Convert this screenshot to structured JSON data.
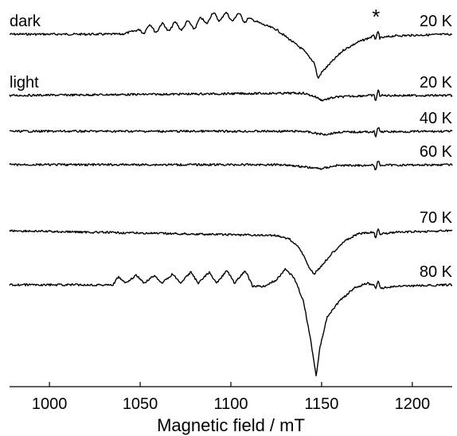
{
  "chart_data": {
    "type": "line",
    "title": "",
    "xlabel": "Magnetic field / mT",
    "ylabel": "",
    "xlim": [
      978,
      1222
    ],
    "xticks": [
      1000,
      1050,
      1100,
      1150,
      1200
    ],
    "xtick_labels": [
      "1000",
      "1050",
      "1100",
      "1150",
      "1200"
    ],
    "y_axis_shown": false,
    "grid": false,
    "annotation": "*",
    "annotation_field": 1180,
    "series": [
      {
        "left_label": "dark",
        "right_label": "20 K",
        "baseline": 43,
        "points": [
          [
            978,
            0
          ],
          [
            1040,
            0
          ],
          [
            1050,
            -6
          ],
          [
            1060,
            -8
          ],
          [
            1070,
            -10
          ],
          [
            1080,
            -12
          ],
          [
            1090,
            -22
          ],
          [
            1100,
            -22
          ],
          [
            1110,
            -20
          ],
          [
            1118,
            -12
          ],
          [
            1125,
            -6
          ],
          [
            1132,
            6
          ],
          [
            1140,
            20
          ],
          [
            1146,
            36
          ],
          [
            1148,
            56
          ],
          [
            1150,
            48
          ],
          [
            1155,
            36
          ],
          [
            1162,
            20
          ],
          [
            1170,
            10
          ],
          [
            1178,
            3
          ],
          [
            1180,
            0
          ],
          [
            1182,
            5
          ],
          [
            1190,
            2
          ],
          [
            1222,
            0
          ]
        ],
        "lines": [
          [
            1050,
            1110,
            10,
            7
          ],
          [
            1179,
            1182,
            11,
            3
          ]
        ]
      },
      {
        "left_label": "light",
        "right_label": "20 K",
        "baseline": 120,
        "points": [
          [
            978,
            0
          ],
          [
            1140,
            -3
          ],
          [
            1147,
            2
          ],
          [
            1150,
            6
          ],
          [
            1158,
            2
          ],
          [
            1175,
            0
          ],
          [
            1180,
            0
          ],
          [
            1222,
            0
          ]
        ],
        "lines": [
          [
            1179,
            1182,
            12,
            3
          ]
        ]
      },
      {
        "right_label": "40 K",
        "baseline": 165,
        "points": [
          [
            978,
            0
          ],
          [
            1140,
            0
          ],
          [
            1148,
            3
          ],
          [
            1152,
            4
          ],
          [
            1160,
            1
          ],
          [
            1222,
            0
          ]
        ],
        "lines": [
          [
            1179,
            1182,
            12,
            3
          ]
        ]
      },
      {
        "right_label": "60 K",
        "baseline": 207,
        "points": [
          [
            978,
            0
          ],
          [
            1130,
            0
          ],
          [
            1145,
            4
          ],
          [
            1150,
            5
          ],
          [
            1158,
            1
          ],
          [
            1222,
            0
          ]
        ],
        "lines": [
          [
            1179,
            1182,
            12,
            3
          ]
        ]
      },
      {
        "right_label": "70 K",
        "baseline": 290,
        "points": [
          [
            978,
            0
          ],
          [
            1100,
            5
          ],
          [
            1125,
            6
          ],
          [
            1132,
            10
          ],
          [
            1138,
            22
          ],
          [
            1144,
            50
          ],
          [
            1146,
            54
          ],
          [
            1150,
            44
          ],
          [
            1155,
            30
          ],
          [
            1162,
            14
          ],
          [
            1170,
            4
          ],
          [
            1178,
            2
          ],
          [
            1182,
            4
          ],
          [
            1190,
            2
          ],
          [
            1222,
            0
          ]
        ],
        "lines": [
          [
            1179,
            1182,
            12,
            3
          ]
        ]
      },
      {
        "right_label": "80 K",
        "baseline": 358,
        "points": [
          [
            978,
            0
          ],
          [
            1035,
            0
          ],
          [
            1038,
            -10
          ],
          [
            1042,
            -2
          ],
          [
            1048,
            -12
          ],
          [
            1052,
            -2
          ],
          [
            1058,
            -12
          ],
          [
            1062,
            -2
          ],
          [
            1068,
            -14
          ],
          [
            1072,
            -2
          ],
          [
            1078,
            -16
          ],
          [
            1082,
            -2
          ],
          [
            1088,
            -16
          ],
          [
            1092,
            -2
          ],
          [
            1098,
            -18
          ],
          [
            1102,
            -2
          ],
          [
            1108,
            -18
          ],
          [
            1112,
            2
          ],
          [
            1118,
            2
          ],
          [
            1125,
            -6
          ],
          [
            1130,
            -20
          ],
          [
            1135,
            -8
          ],
          [
            1140,
            20
          ],
          [
            1144,
            70
          ],
          [
            1147,
            115
          ],
          [
            1149,
            80
          ],
          [
            1153,
            40
          ],
          [
            1160,
            20
          ],
          [
            1168,
            4
          ],
          [
            1175,
            -2
          ],
          [
            1180,
            0
          ],
          [
            1183,
            4
          ],
          [
            1190,
            2
          ],
          [
            1222,
            0
          ]
        ],
        "lines": [
          [
            1179,
            1182,
            10,
            3
          ]
        ]
      }
    ]
  }
}
